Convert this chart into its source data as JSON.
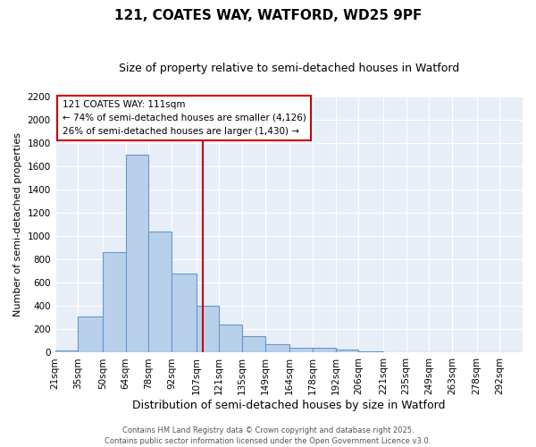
{
  "title": "121, COATES WAY, WATFORD, WD25 9PF",
  "subtitle": "Size of property relative to semi-detached houses in Watford",
  "xlabel": "Distribution of semi-detached houses by size in Watford",
  "ylabel": "Number of semi-detached properties",
  "bar_color": "#b8d0ea",
  "bar_edge_color": "#6699cc",
  "background_color": "#e8eef8",
  "grid_color": "#ffffff",
  "vline_x": 111,
  "vline_color": "#cc0000",
  "bin_edges": [
    21,
    35,
    50,
    64,
    78,
    92,
    107,
    121,
    135,
    149,
    164,
    178,
    192,
    206,
    221,
    235,
    249,
    263,
    278,
    292,
    306
  ],
  "bar_heights": [
    20,
    310,
    860,
    1700,
    1040,
    680,
    400,
    245,
    140,
    75,
    40,
    40,
    30,
    15,
    5,
    5,
    0,
    5,
    0,
    0
  ],
  "ylim": [
    0,
    2200
  ],
  "yticks": [
    0,
    200,
    400,
    600,
    800,
    1000,
    1200,
    1400,
    1600,
    1800,
    2000,
    2200
  ],
  "annotation_title": "121 COATES WAY: 111sqm",
  "annotation_line1": "← 74% of semi-detached houses are smaller (4,126)",
  "annotation_line2": "26% of semi-detached houses are larger (1,430) →",
  "footer1": "Contains HM Land Registry data © Crown copyright and database right 2025.",
  "footer2": "Contains public sector information licensed under the Open Government Licence v3.0.",
  "title_fontsize": 11,
  "subtitle_fontsize": 9,
  "xlabel_fontsize": 9,
  "ylabel_fontsize": 8,
  "tick_fontsize": 7.5,
  "annotation_fontsize": 7.5,
  "footer_fontsize": 6
}
